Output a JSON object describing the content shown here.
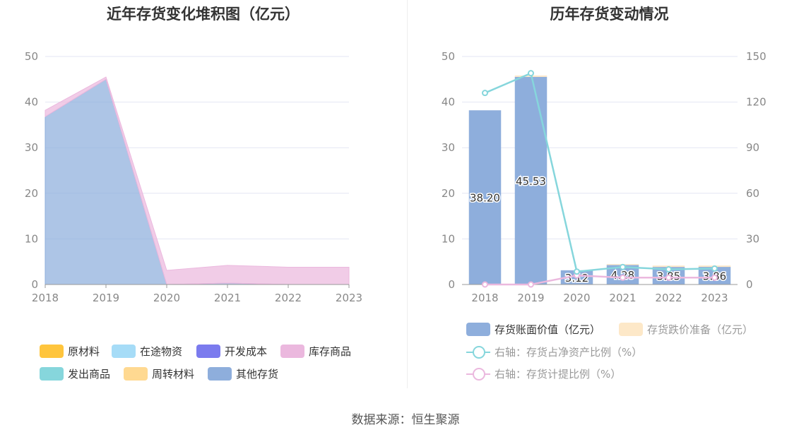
{
  "left": {
    "title": "近年存货变化堆积图（亿元）",
    "legend": [
      {
        "name": "原材料",
        "color": "#ffc53d"
      },
      {
        "name": "在途物资",
        "color": "#a6dcf7"
      },
      {
        "name": "开发成本",
        "color": "#7b7bee"
      },
      {
        "name": "库存商品",
        "color": "#ebb8de"
      },
      {
        "name": "发出商品",
        "color": "#86d6dc"
      },
      {
        "name": "周转材料",
        "color": "#ffd991"
      },
      {
        "name": "其他存货",
        "color": "#8eaedc"
      }
    ]
  },
  "right": {
    "title": "历年存货变动情况",
    "legend": [
      {
        "name": "存货账面价值（亿元）",
        "color": "#8eaedc",
        "kind": "bar"
      },
      {
        "name": "存货跌价准备（亿元）",
        "color": "#fde8c8",
        "kind": "bar"
      },
      {
        "name": "右轴：存货占净资产比例（%）",
        "color": "#86d6dc",
        "kind": "line"
      },
      {
        "name": "右轴：存货计提比例（%）",
        "color": "#ebb8de",
        "kind": "line"
      }
    ]
  },
  "source": "数据来源：恒生聚源",
  "chart_data": [
    {
      "type": "area",
      "title": "近年存货变化堆积图（亿元）",
      "x": [
        "2018",
        "2019",
        "2020",
        "2021",
        "2022",
        "2023"
      ],
      "ylim": [
        0,
        50
      ],
      "yticks": [
        0,
        10,
        20,
        30,
        40,
        50
      ],
      "stacked": true,
      "grid": true,
      "legend_position": "bottom",
      "series": [
        {
          "name": "其他存货",
          "values": [
            36.8,
            45.0,
            0,
            0.3,
            0,
            0
          ],
          "color": "#8eaedc"
        },
        {
          "name": "库存商品",
          "values": [
            1.4,
            0.5,
            3.1,
            3.9,
            3.8,
            3.8
          ],
          "color": "#ebb8de"
        }
      ]
    },
    {
      "type": "bar",
      "title": "历年存货变动情况",
      "categories": [
        "2018",
        "2019",
        "2020",
        "2021",
        "2022",
        "2023"
      ],
      "ylim": [
        0,
        50
      ],
      "yticks": [
        0,
        10,
        20,
        30,
        40,
        50
      ],
      "y2lim": [
        0,
        150
      ],
      "y2ticks": [
        0,
        30,
        60,
        90,
        120,
        150
      ],
      "grid": true,
      "legend_position": "bottom",
      "series": [
        {
          "name": "存货账面价值（亿元）",
          "type": "bar",
          "stack": "a",
          "values": [
            38.2,
            45.53,
            3.12,
            4.28,
            3.85,
            3.86
          ],
          "labels": [
            "38.20",
            "45.53",
            "3.12",
            "4.28",
            "3.85",
            "3.86"
          ],
          "color": "#8eaedc"
        },
        {
          "name": "存货跌价准备（亿元）",
          "type": "bar",
          "stack": "a",
          "values": [
            0,
            0.3,
            0,
            0.2,
            0.3,
            0.3
          ],
          "color": "#fde8c8"
        },
        {
          "name": "右轴：存货占净资产比例（%）",
          "type": "line",
          "axis": "right",
          "values": [
            126,
            139,
            8.5,
            11.5,
            10,
            10.5
          ],
          "color": "#86d6dc"
        },
        {
          "name": "右轴：存货计提比例（%）",
          "type": "line",
          "axis": "right",
          "values": [
            0,
            0,
            6,
            4.5,
            4.5,
            4.5
          ],
          "color": "#ebb8de"
        }
      ]
    }
  ]
}
